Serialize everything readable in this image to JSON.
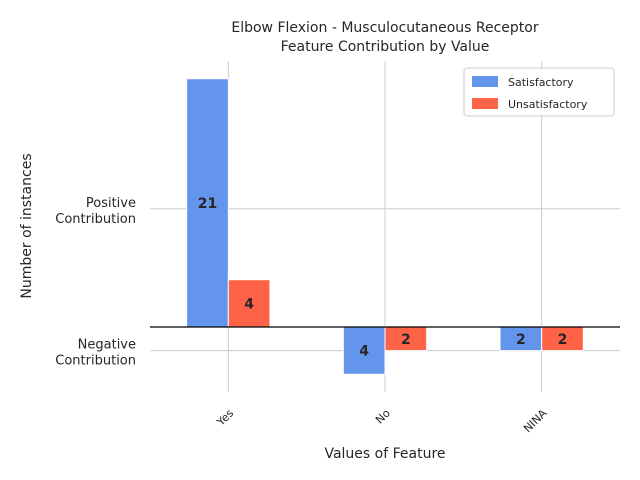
{
  "chart_data": {
    "type": "bar",
    "title_lines": [
      "Elbow Flexion - Musculocutaneous Receptor",
      "Feature Contribution by Value"
    ],
    "xlabel": "Values of Feature",
    "ylabel": "Number of instances",
    "categories": [
      "Yes",
      "No",
      "NINA"
    ],
    "series": [
      {
        "name": "Satisfactory",
        "color": "#6495ED",
        "values": [
          21,
          -4,
          -2
        ],
        "labels": [
          "21",
          "4",
          "2"
        ]
      },
      {
        "name": "Unsatisfactory",
        "color": "#FF6347",
        "values": [
          4,
          -2,
          -2
        ],
        "labels": [
          "4",
          "2",
          "2"
        ]
      }
    ],
    "ylim": [
      -5.5,
      22.5
    ],
    "ytick_values": [
      10,
      -2
    ],
    "ytick_labels": [
      [
        "Positive",
        "Contribution"
      ],
      [
        "Negative",
        "Contribution"
      ]
    ],
    "grid": true,
    "legend_position": "upper right"
  }
}
